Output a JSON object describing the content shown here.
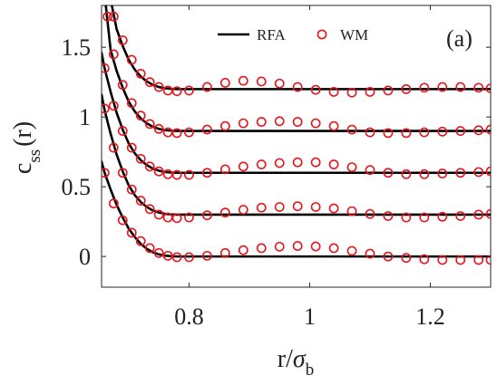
{
  "chart_data": {
    "type": "line",
    "panel_label": "(a)",
    "xlabel": {
      "main": "r/",
      "symbol": "σ",
      "sub": "b"
    },
    "ylabel": {
      "main": "c",
      "sub": "ss",
      "suffix": "(r)"
    },
    "xlim": [
      0.655,
      1.3
    ],
    "ylim": [
      -0.22,
      1.8
    ],
    "xticks": [
      0.8,
      1.0,
      1.2
    ],
    "xtick_labels": [
      "0.8",
      "1",
      "1.2"
    ],
    "yticks": [
      0,
      0.5,
      1.0,
      1.5
    ],
    "ytick_labels": [
      "0",
      "0.5",
      "1",
      "1.5"
    ],
    "grid": false,
    "legend": {
      "placement": "top-center",
      "entries": [
        {
          "label": "RFA",
          "style": "line",
          "color": "#000000"
        },
        {
          "label": "WM",
          "style": "open-circle",
          "color": "#e8141c"
        }
      ]
    },
    "series": [
      {
        "label": "RFA",
        "style": "line",
        "color": "#000000",
        "curves": [
          {
            "offset": 0.0,
            "x": [
              0.655,
              0.66,
              0.67,
              0.68,
              0.69,
              0.7,
              0.71,
              0.72,
              0.73,
              0.74,
              0.75,
              0.76,
              0.77,
              0.78,
              0.8,
              0.85,
              0.9,
              0.95,
              1.0,
              1.05,
              1.1,
              1.15,
              1.2,
              1.25,
              1.3
            ],
            "y": [
              0.68,
              0.6,
              0.48,
              0.37,
              0.28,
              0.2,
              0.14,
              0.09,
              0.055,
              0.03,
              0.015,
              0.006,
              0.002,
              0.0,
              0.0,
              0.0,
              0.0,
              0.0,
              0.0,
              0.0,
              0.0,
              0.0,
              0.0,
              0.0,
              0.0
            ]
          },
          {
            "offset": 0.3,
            "x": [
              0.655,
              0.66,
              0.67,
              0.68,
              0.69,
              0.7,
              0.71,
              0.72,
              0.73,
              0.74,
              0.75,
              0.76,
              0.77,
              0.78,
              0.8,
              0.85,
              0.9,
              0.95,
              1.0,
              1.05,
              1.1,
              1.15,
              1.2,
              1.25,
              1.3
            ],
            "y": [
              1.16,
              1.05,
              0.88,
              0.73,
              0.61,
              0.51,
              0.44,
              0.39,
              0.355,
              0.33,
              0.315,
              0.306,
              0.302,
              0.3,
              0.3,
              0.3,
              0.3,
              0.3,
              0.3,
              0.3,
              0.3,
              0.3,
              0.3,
              0.3,
              0.3
            ]
          },
          {
            "offset": 0.6,
            "x": [
              0.655,
              0.66,
              0.67,
              0.68,
              0.69,
              0.7,
              0.71,
              0.72,
              0.73,
              0.74,
              0.75,
              0.76,
              0.77,
              0.78,
              0.8,
              0.85,
              0.9,
              0.95,
              1.0,
              1.05,
              1.1,
              1.15,
              1.2,
              1.25,
              1.3
            ],
            "y": [
              1.46,
              1.35,
              1.18,
              1.03,
              0.91,
              0.81,
              0.74,
              0.69,
              0.655,
              0.63,
              0.615,
              0.606,
              0.602,
              0.6,
              0.6,
              0.6,
              0.6,
              0.6,
              0.6,
              0.6,
              0.6,
              0.6,
              0.6,
              0.6,
              0.6
            ]
          },
          {
            "offset": 0.9,
            "x": [
              0.662,
              0.67,
              0.68,
              0.69,
              0.7,
              0.71,
              0.72,
              0.73,
              0.74,
              0.75,
              0.76,
              0.77,
              0.78,
              0.8,
              0.85,
              0.9,
              0.95,
              1.0,
              1.05,
              1.1,
              1.15,
              1.2,
              1.25,
              1.3
            ],
            "y": [
              1.8,
              1.48,
              1.33,
              1.21,
              1.11,
              1.04,
              0.99,
              0.955,
              0.93,
              0.915,
              0.906,
              0.902,
              0.9,
              0.9,
              0.9,
              0.9,
              0.9,
              0.9,
              0.9,
              0.9,
              0.9,
              0.9,
              0.9,
              0.9
            ]
          },
          {
            "offset": 1.2,
            "x": [
              0.672,
              0.68,
              0.69,
              0.7,
              0.71,
              0.72,
              0.73,
              0.74,
              0.75,
              0.76,
              0.77,
              0.78,
              0.8,
              0.85,
              0.9,
              0.95,
              1.0,
              1.05,
              1.1,
              1.15,
              1.2,
              1.25,
              1.3
            ],
            "y": [
              1.8,
              1.63,
              1.51,
              1.41,
              1.34,
              1.29,
              1.255,
              1.23,
              1.215,
              1.206,
              1.202,
              1.2,
              1.2,
              1.2,
              1.2,
              1.2,
              1.2,
              1.2,
              1.2,
              1.2,
              1.2,
              1.2,
              1.2
            ]
          }
        ]
      },
      {
        "label": "WM",
        "style": "open-circle",
        "color": "#e8141c",
        "curves": [
          {
            "offset": 0.0,
            "x": [
              0.66,
              0.675,
              0.69,
              0.705,
              0.72,
              0.735,
              0.75,
              0.765,
              0.78,
              0.8,
              0.83,
              0.86,
              0.89,
              0.92,
              0.95,
              0.98,
              1.01,
              1.04,
              1.07,
              1.1,
              1.13,
              1.16,
              1.19,
              1.22,
              1.25,
              1.28,
              1.3
            ],
            "y": [
              0.6,
              0.38,
              0.26,
              0.17,
              0.11,
              0.06,
              0.025,
              0.005,
              -0.005,
              -0.005,
              0.005,
              0.025,
              0.045,
              0.06,
              0.07,
              0.075,
              0.072,
              0.06,
              0.04,
              0.02,
              0.0,
              -0.01,
              -0.02,
              -0.025,
              -0.025,
              -0.025,
              -0.025
            ]
          },
          {
            "offset": 0.3,
            "x": [
              0.66,
              0.675,
              0.69,
              0.705,
              0.72,
              0.735,
              0.75,
              0.765,
              0.78,
              0.8,
              0.83,
              0.86,
              0.89,
              0.92,
              0.95,
              0.98,
              1.01,
              1.04,
              1.07,
              1.1,
              1.13,
              1.16,
              1.19,
              1.22,
              1.25,
              1.28,
              1.3
            ],
            "y": [
              1.06,
              0.78,
              0.6,
              0.48,
              0.4,
              0.34,
              0.3,
              0.28,
              0.275,
              0.28,
              0.295,
              0.315,
              0.335,
              0.35,
              0.355,
              0.36,
              0.355,
              0.345,
              0.325,
              0.305,
              0.29,
              0.28,
              0.28,
              0.285,
              0.29,
              0.3,
              0.305
            ]
          },
          {
            "offset": 0.6,
            "x": [
              0.66,
              0.675,
              0.69,
              0.705,
              0.72,
              0.735,
              0.75,
              0.765,
              0.78,
              0.8,
              0.83,
              0.86,
              0.89,
              0.92,
              0.95,
              0.98,
              1.01,
              1.04,
              1.07,
              1.1,
              1.13,
              1.16,
              1.19,
              1.22,
              1.25,
              1.28,
              1.3
            ],
            "y": [
              1.35,
              1.08,
              0.9,
              0.78,
              0.7,
              0.645,
              0.61,
              0.59,
              0.585,
              0.585,
              0.6,
              0.625,
              0.645,
              0.66,
              0.67,
              0.675,
              0.675,
              0.66,
              0.64,
              0.62,
              0.6,
              0.59,
              0.59,
              0.595,
              0.6,
              0.605,
              0.61
            ]
          },
          {
            "offset": 0.9,
            "x": [
              0.665,
              0.675,
              0.69,
              0.705,
              0.72,
              0.735,
              0.75,
              0.765,
              0.78,
              0.8,
              0.83,
              0.86,
              0.89,
              0.92,
              0.95,
              0.98,
              1.01,
              1.04,
              1.07,
              1.1,
              1.13,
              1.16,
              1.19,
              1.22,
              1.25,
              1.28,
              1.3
            ],
            "y": [
              1.72,
              1.45,
              1.23,
              1.1,
              1.01,
              0.95,
              0.915,
              0.89,
              0.885,
              0.89,
              0.91,
              0.935,
              0.955,
              0.965,
              0.97,
              0.965,
              0.955,
              0.935,
              0.91,
              0.89,
              0.885,
              0.885,
              0.89,
              0.895,
              0.9,
              0.905,
              0.91
            ]
          },
          {
            "offset": 1.2,
            "x": [
              0.675,
              0.69,
              0.705,
              0.72,
              0.735,
              0.75,
              0.765,
              0.78,
              0.8,
              0.83,
              0.86,
              0.89,
              0.92,
              0.95,
              0.98,
              1.01,
              1.04,
              1.07,
              1.1,
              1.13,
              1.16,
              1.19,
              1.22,
              1.25,
              1.28,
              1.3
            ],
            "y": [
              1.72,
              1.55,
              1.41,
              1.31,
              1.25,
              1.215,
              1.19,
              1.185,
              1.19,
              1.215,
              1.245,
              1.26,
              1.255,
              1.24,
              1.215,
              1.195,
              1.18,
              1.175,
              1.18,
              1.19,
              1.2,
              1.21,
              1.215,
              1.215,
              1.21,
              1.205
            ]
          }
        ]
      }
    ]
  }
}
